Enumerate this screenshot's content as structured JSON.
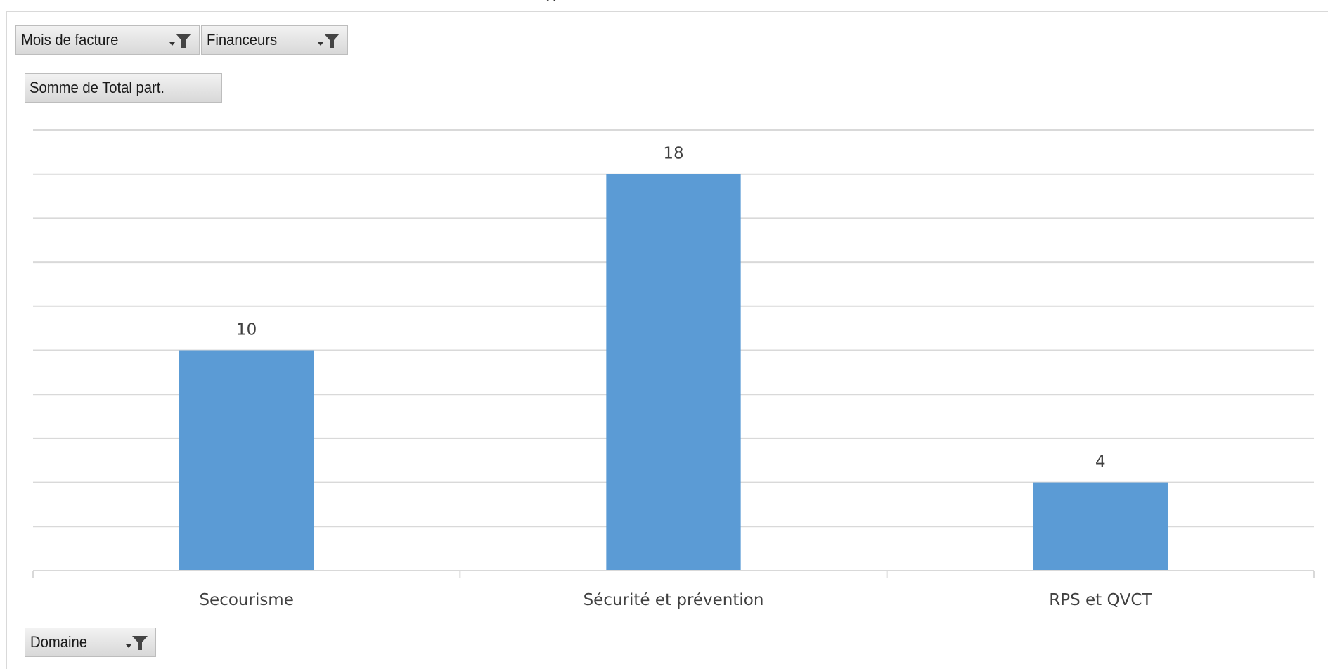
{
  "filters": {
    "report_fields": [
      {
        "label": "Mois de facture"
      },
      {
        "label": "Financeurs"
      }
    ],
    "value_field": {
      "label": "Somme de Total part."
    },
    "axis_field": {
      "label": "Domaine"
    }
  },
  "chart_data": {
    "type": "bar",
    "categories": [
      "Secourisme",
      "Sécurité et prévention",
      "RPS et QVCT"
    ],
    "series": [
      {
        "values": [
          10,
          18,
          4
        ]
      }
    ],
    "ylim": [
      0,
      20
    ],
    "gridline_step": 2,
    "show_data_labels": true,
    "show_value_axis": false,
    "grid": true,
    "legend": "none",
    "bar_color": "#5b9bd5"
  }
}
